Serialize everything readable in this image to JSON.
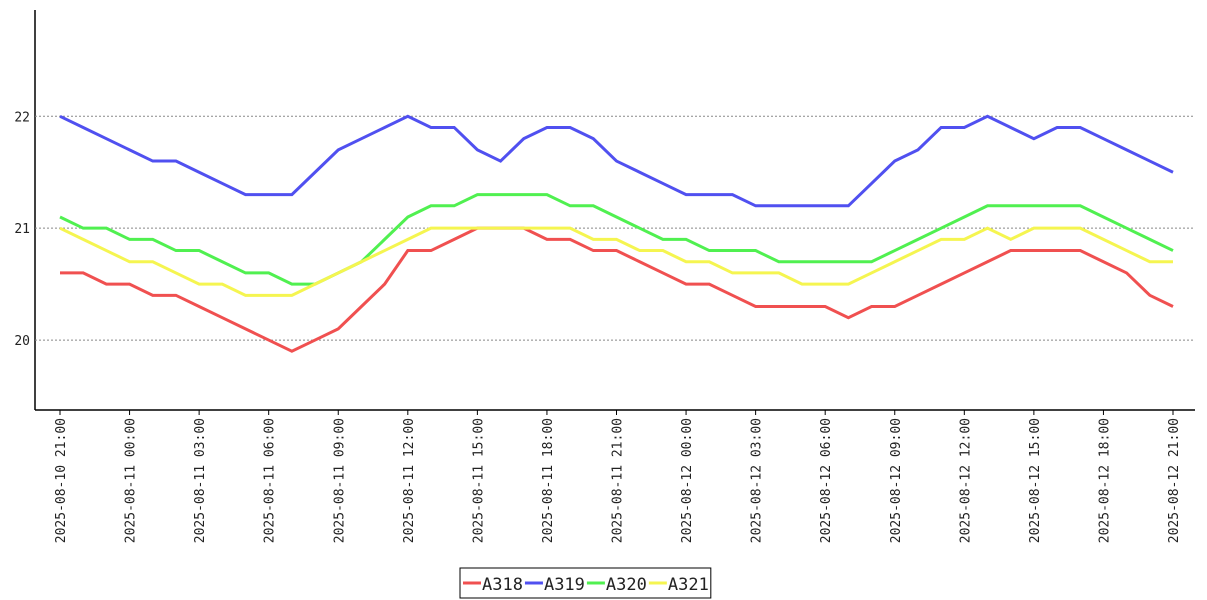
{
  "chart_data": {
    "type": "line",
    "x": [
      "2025-08-10 21:00",
      "2025-08-10 22:00",
      "2025-08-10 23:00",
      "2025-08-11 00:00",
      "2025-08-11 01:00",
      "2025-08-11 02:00",
      "2025-08-11 03:00",
      "2025-08-11 04:00",
      "2025-08-11 05:00",
      "2025-08-11 06:00",
      "2025-08-11 07:00",
      "2025-08-11 08:00",
      "2025-08-11 09:00",
      "2025-08-11 10:00",
      "2025-08-11 11:00",
      "2025-08-11 12:00",
      "2025-08-11 13:00",
      "2025-08-11 14:00",
      "2025-08-11 15:00",
      "2025-08-11 16:00",
      "2025-08-11 17:00",
      "2025-08-11 18:00",
      "2025-08-11 19:00",
      "2025-08-11 20:00",
      "2025-08-11 21:00",
      "2025-08-11 22:00",
      "2025-08-11 23:00",
      "2025-08-12 00:00",
      "2025-08-12 01:00",
      "2025-08-12 02:00",
      "2025-08-12 03:00",
      "2025-08-12 04:00",
      "2025-08-12 05:00",
      "2025-08-12 06:00",
      "2025-08-12 07:00",
      "2025-08-12 08:00",
      "2025-08-12 09:00",
      "2025-08-12 10:00",
      "2025-08-12 11:00",
      "2025-08-12 12:00",
      "2025-08-12 13:00",
      "2025-08-12 14:00",
      "2025-08-12 15:00",
      "2025-08-12 16:00",
      "2025-08-12 17:00",
      "2025-08-12 18:00",
      "2025-08-12 19:00",
      "2025-08-12 20:00",
      "2025-08-12 21:00"
    ],
    "series": [
      {
        "name": "A318",
        "color": "#f05050",
        "values": [
          20.6,
          20.6,
          20.5,
          20.5,
          20.4,
          20.4,
          20.3,
          20.2,
          20.1,
          20.0,
          19.9,
          20.0,
          20.1,
          20.3,
          20.5,
          20.8,
          20.8,
          20.9,
          21.0,
          21.0,
          21.0,
          20.9,
          20.9,
          20.8,
          20.8,
          20.7,
          20.6,
          20.5,
          20.5,
          20.4,
          20.3,
          20.3,
          20.3,
          20.3,
          20.2,
          20.3,
          20.3,
          20.4,
          20.5,
          20.6,
          20.7,
          20.8,
          20.8,
          20.8,
          20.8,
          20.7,
          20.6,
          20.4,
          20.3
        ]
      },
      {
        "name": "A319",
        "color": "#5050f0",
        "values": [
          22.0,
          21.9,
          21.8,
          21.7,
          21.6,
          21.6,
          21.5,
          21.4,
          21.3,
          21.3,
          21.3,
          21.5,
          21.7,
          21.8,
          21.9,
          22.0,
          21.9,
          21.9,
          21.7,
          21.6,
          21.8,
          21.9,
          21.9,
          21.8,
          21.6,
          21.5,
          21.4,
          21.3,
          21.3,
          21.3,
          21.2,
          21.2,
          21.2,
          21.2,
          21.2,
          21.4,
          21.6,
          21.7,
          21.9,
          21.9,
          22.0,
          21.9,
          21.8,
          21.9,
          21.9,
          21.8,
          21.7,
          21.6,
          21.5
        ]
      },
      {
        "name": "A320",
        "color": "#50f050",
        "values": [
          21.1,
          21.0,
          21.0,
          20.9,
          20.9,
          20.8,
          20.8,
          20.7,
          20.6,
          20.6,
          20.5,
          20.5,
          20.6,
          20.7,
          20.9,
          21.1,
          21.2,
          21.2,
          21.3,
          21.3,
          21.3,
          21.3,
          21.2,
          21.2,
          21.1,
          21.0,
          20.9,
          20.9,
          20.8,
          20.8,
          20.8,
          20.7,
          20.7,
          20.7,
          20.7,
          20.7,
          20.8,
          20.9,
          21.0,
          21.1,
          21.2,
          21.2,
          21.2,
          21.2,
          21.2,
          21.1,
          21.0,
          20.9,
          20.8
        ]
      },
      {
        "name": "A321",
        "color": "#f5f550",
        "values": [
          21.0,
          20.9,
          20.8,
          20.7,
          20.7,
          20.6,
          20.5,
          20.5,
          20.4,
          20.4,
          20.4,
          20.5,
          20.6,
          20.7,
          20.8,
          20.9,
          21.0,
          21.0,
          21.0,
          21.0,
          21.0,
          21.0,
          21.0,
          20.9,
          20.9,
          20.8,
          20.8,
          20.7,
          20.7,
          20.6,
          20.6,
          20.6,
          20.5,
          20.5,
          20.5,
          20.6,
          20.7,
          20.8,
          20.9,
          20.9,
          21.0,
          20.9,
          21.0,
          21.0,
          21.0,
          20.9,
          20.8,
          20.7,
          20.7
        ]
      }
    ],
    "xticks": [
      "2025-08-10 21:00",
      "2025-08-11 00:00",
      "2025-08-11 03:00",
      "2025-08-11 06:00",
      "2025-08-11 09:00",
      "2025-08-11 12:00",
      "2025-08-11 15:00",
      "2025-08-11 18:00",
      "2025-08-11 21:00",
      "2025-08-12 00:00",
      "2025-08-12 03:00",
      "2025-08-12 06:00",
      "2025-08-12 09:00",
      "2025-08-12 12:00",
      "2025-08-12 15:00",
      "2025-08-12 18:00",
      "2025-08-12 21:00"
    ],
    "ylim": [
      19.375,
      22.95
    ],
    "yticks": [
      20,
      21,
      22
    ],
    "grid": true,
    "legend": "bottom"
  }
}
